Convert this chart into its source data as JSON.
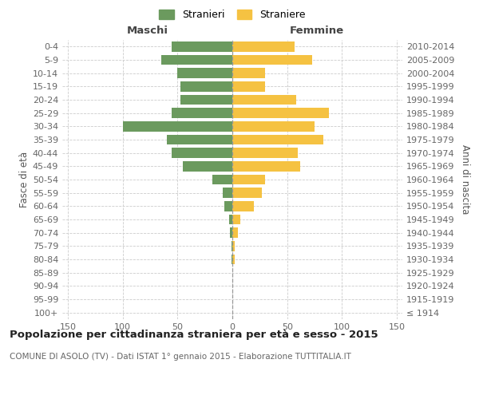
{
  "age_groups": [
    "100+",
    "95-99",
    "90-94",
    "85-89",
    "80-84",
    "75-79",
    "70-74",
    "65-69",
    "60-64",
    "55-59",
    "50-54",
    "45-49",
    "40-44",
    "35-39",
    "30-34",
    "25-29",
    "20-24",
    "15-19",
    "10-14",
    "5-9",
    "0-4"
  ],
  "birth_years": [
    "≤ 1914",
    "1915-1919",
    "1920-1924",
    "1925-1929",
    "1930-1934",
    "1935-1939",
    "1940-1944",
    "1945-1949",
    "1950-1954",
    "1955-1959",
    "1960-1964",
    "1965-1969",
    "1970-1974",
    "1975-1979",
    "1980-1984",
    "1985-1989",
    "1990-1994",
    "1995-1999",
    "2000-2004",
    "2005-2009",
    "2010-2014"
  ],
  "maschi": [
    0,
    0,
    0,
    0,
    1,
    1,
    2,
    3,
    7,
    9,
    18,
    45,
    55,
    60,
    100,
    55,
    47,
    47,
    50,
    65,
    55
  ],
  "femmine": [
    0,
    0,
    0,
    0,
    2,
    2,
    5,
    7,
    20,
    27,
    30,
    62,
    60,
    83,
    75,
    88,
    58,
    30,
    30,
    73,
    57
  ],
  "maschi_color": "#6b9a5e",
  "femmine_color": "#f5c242",
  "grid_color": "#cccccc",
  "center_line_color": "#999999",
  "title": "Popolazione per cittadinanza straniera per età e sesso - 2015",
  "subtitle": "COMUNE DI ASOLO (TV) - Dati ISTAT 1° gennaio 2015 - Elaborazione TUTTITALIA.IT",
  "header_left": "Maschi",
  "header_right": "Femmine",
  "ylabel_left": "Fasce di età",
  "ylabel_right": "Anni di nascita",
  "legend_maschi": "Stranieri",
  "legend_femmine": "Straniere",
  "xlim": 155,
  "bar_height": 0.75,
  "title_fontsize": 9.5,
  "subtitle_fontsize": 7.5,
  "tick_fontsize": 8,
  "label_fontsize": 8.5,
  "header_fontsize": 9.5,
  "legend_fontsize": 9
}
